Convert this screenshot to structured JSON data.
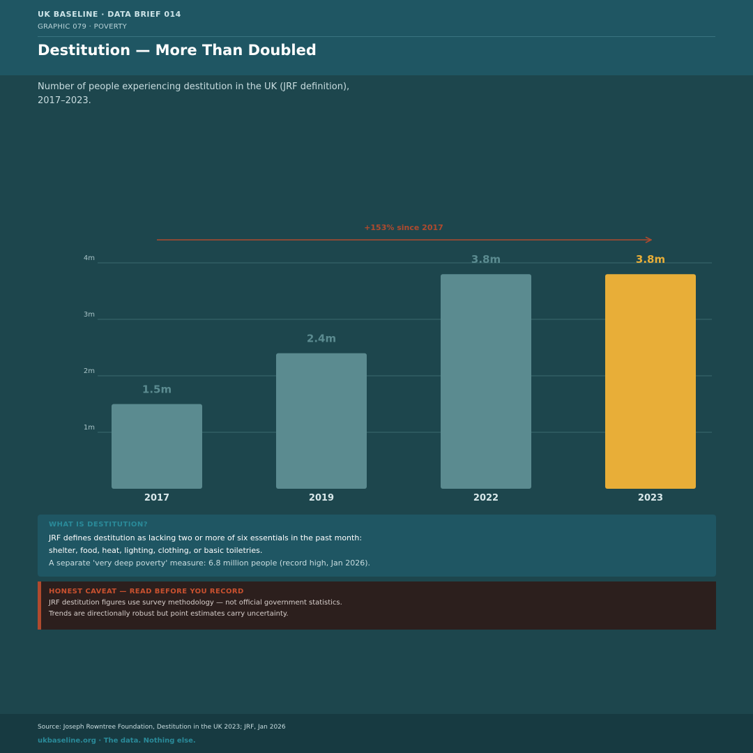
{
  "header": {
    "eyebrow": "UK BASELINE  ·  DATA BRIEF 014",
    "subeyebrow": "GRAPHIC 079  ·  POVERTY",
    "title": "Destitution — More Than Doubled",
    "subtitle": "Number of people experiencing destitution in the UK (JRF definition), 2017–2023."
  },
  "chart_data": {
    "type": "bar",
    "categories": [
      "2017",
      "2019",
      "2022",
      "2023"
    ],
    "values": [
      1.5,
      2.4,
      3.8,
      3.8
    ],
    "value_labels": [
      "1.5m",
      "2.4m",
      "3.8m",
      "3.8m"
    ],
    "ylim": [
      0,
      4
    ],
    "y_ticks": [
      1,
      2,
      3,
      4
    ],
    "y_tick_labels": [
      "1m",
      "2m",
      "3m",
      "4m"
    ],
    "grid": true,
    "highlight_index": 3,
    "annotation": "+153% since 2017",
    "colors": {
      "bar": "#5b8b90",
      "bar_label": "#5b8b90",
      "highlight": "#e8ae38",
      "highlight_label": "#e8ae38",
      "annotation": "#b04a2e",
      "grid": "#3a6a70",
      "tick": "#a9c4c8",
      "category": "#d9e8ea"
    }
  },
  "info": {
    "heading": "WHAT IS DESTITUTION?",
    "line1": "JRF defines destitution as lacking two or more of six essentials in the past month:",
    "line2": "shelter, food, heat, lighting, clothing, or basic toiletries.",
    "line3": "A separate 'very deep poverty' measure: 6.8 million people (record high, Jan 2026)."
  },
  "caveat": {
    "heading": "HONEST CAVEAT — READ BEFORE YOU RECORD",
    "line1": "JRF destitution figures use survey methodology — not official government statistics.",
    "line2": "Trends are directionally robust but point estimates carry uncertainty."
  },
  "footer": {
    "source": "Source: Joseph Rowntree Foundation, Destitution in the UK 2023; JRF, Jan 2026",
    "tagline": "ukbaseline.org  ·  The data. Nothing else."
  }
}
